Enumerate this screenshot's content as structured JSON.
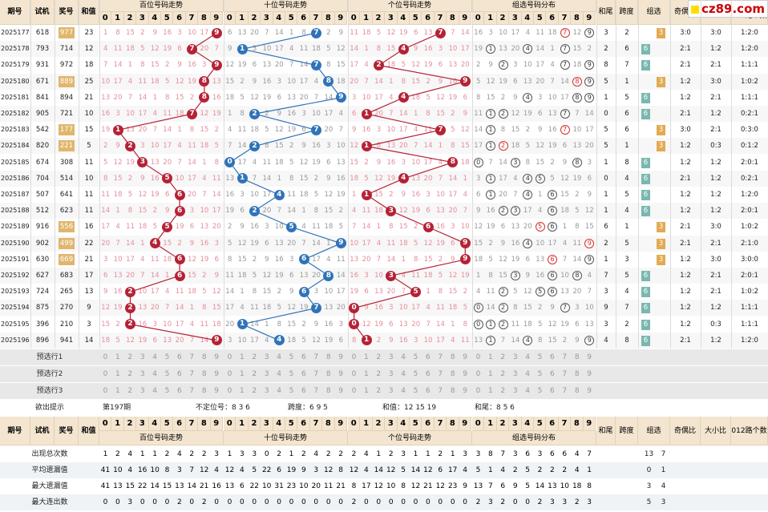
{
  "header": {
    "issue": "期号",
    "shiji": "试机",
    "jianghao": "奖号",
    "hezhi": "和值",
    "bai_title": "百位号码走势",
    "shi_title": "十位号码走势",
    "ge_title": "个位号码走势",
    "zu_title": "组选号码分布",
    "hewei": "和尾",
    "kuadu": "跨度",
    "zuxuan": "组选",
    "jiou": "奇偶比",
    "daxiao": "大小比",
    "lu": "012路个数比",
    "digits": [
      "0",
      "1",
      "2",
      "3",
      "4",
      "5",
      "6",
      "7",
      "8",
      "9"
    ]
  },
  "logo": {
    "text": "cz89.com"
  },
  "rows": [
    {
      "issue": "2025177",
      "sj": "618",
      "kj": "977",
      "kj_hl": true,
      "hz": "23",
      "b": 9,
      "s": 7,
      "g": 7,
      "zu": [
        7,
        9
      ],
      "zu_red": [
        7
      ],
      "hw": "3",
      "kd": "2",
      "zx": "3",
      "zx_type": "o",
      "jo": "3:0",
      "dx": "3:0",
      "l": "1:2:0"
    },
    {
      "issue": "2025178",
      "sj": "793",
      "kj": "714",
      "kj_hl": false,
      "hz": "12",
      "b": 7,
      "s": 1,
      "g": 4,
      "zu": [
        1,
        4,
        7
      ],
      "zu_red": [],
      "hw": "2",
      "kd": "6",
      "zx": "6",
      "zx_type": "g",
      "jo": "2:1",
      "dx": "1:2",
      "l": "1:2:0"
    },
    {
      "issue": "2025179",
      "sj": "931",
      "kj": "972",
      "kj_hl": false,
      "hz": "18",
      "b": 9,
      "s": 7,
      "g": 2,
      "zu": [
        2,
        7,
        9
      ],
      "zu_red": [],
      "hw": "8",
      "kd": "7",
      "zx": "6",
      "zx_type": "g",
      "jo": "2:1",
      "dx": "2:1",
      "l": "1:1:1"
    },
    {
      "issue": "2025180",
      "sj": "671",
      "kj": "889",
      "kj_hl": true,
      "hz": "25",
      "b": 8,
      "s": 8,
      "g": 9,
      "zu": [
        8,
        9
      ],
      "zu_red": [
        8
      ],
      "hw": "5",
      "kd": "1",
      "zx": "3",
      "zx_type": "o",
      "jo": "1:2",
      "dx": "3:0",
      "l": "1:0:2"
    },
    {
      "issue": "2025181",
      "sj": "841",
      "kj": "894",
      "kj_hl": false,
      "hz": "21",
      "b": 8,
      "s": 9,
      "g": 4,
      "zu": [
        4,
        8,
        9
      ],
      "zu_red": [],
      "hw": "1",
      "kd": "5",
      "zx": "6",
      "zx_type": "g",
      "jo": "1:2",
      "dx": "2:1",
      "l": "1:1:1"
    },
    {
      "issue": "2025182",
      "sj": "905",
      "kj": "721",
      "kj_hl": false,
      "hz": "10",
      "b": 7,
      "s": 2,
      "g": 1,
      "zu": [
        1,
        2,
        7
      ],
      "zu_red": [],
      "hw": "0",
      "kd": "6",
      "zx": "6",
      "zx_type": "g",
      "jo": "2:1",
      "dx": "1:2",
      "l": "0:2:1"
    },
    {
      "issue": "2025183",
      "sj": "542",
      "kj": "177",
      "kj_hl": true,
      "hz": "15",
      "b": 1,
      "s": 7,
      "g": 7,
      "zu": [
        1,
        7
      ],
      "zu_red": [
        7
      ],
      "hw": "5",
      "kd": "6",
      "zx": "3",
      "zx_type": "o",
      "jo": "3:0",
      "dx": "2:1",
      "l": "0:3:0"
    },
    {
      "issue": "2025184",
      "sj": "820",
      "kj": "221",
      "kj_hl": true,
      "hz": "5",
      "b": 2,
      "s": 2,
      "g": 1,
      "zu": [
        1,
        2
      ],
      "zu_red": [
        2
      ],
      "hw": "5",
      "kd": "1",
      "zx": "3",
      "zx_type": "o",
      "jo": "1:2",
      "dx": "0:3",
      "l": "0:1:2"
    },
    {
      "issue": "2025185",
      "sj": "674",
      "kj": "308",
      "kj_hl": false,
      "hz": "11",
      "b": 3,
      "s": 0,
      "g": 8,
      "zu": [
        0,
        3,
        8
      ],
      "zu_red": [],
      "hw": "1",
      "kd": "8",
      "zx": "6",
      "zx_type": "g",
      "jo": "1:2",
      "dx": "1:2",
      "l": "2:0:1"
    },
    {
      "issue": "2025186",
      "sj": "704",
      "kj": "514",
      "kj_hl": false,
      "hz": "10",
      "b": 5,
      "s": 1,
      "g": 4,
      "zu": [
        1,
        4,
        5
      ],
      "zu_red": [],
      "hw": "0",
      "kd": "4",
      "zx": "6",
      "zx_type": "g",
      "jo": "2:1",
      "dx": "1:2",
      "l": "0:2:1"
    },
    {
      "issue": "2025187",
      "sj": "507",
      "kj": "641",
      "kj_hl": false,
      "hz": "11",
      "b": 6,
      "s": 4,
      "g": 1,
      "zu": [
        1,
        4,
        6
      ],
      "zu_red": [],
      "hw": "1",
      "kd": "5",
      "zx": "6",
      "zx_type": "g",
      "jo": "1:2",
      "dx": "1:2",
      "l": "1:2:0"
    },
    {
      "issue": "2025188",
      "sj": "512",
      "kj": "623",
      "kj_hl": false,
      "hz": "11",
      "b": 6,
      "s": 2,
      "g": 3,
      "zu": [
        2,
        3,
        6
      ],
      "zu_red": [],
      "hw": "1",
      "kd": "4",
      "zx": "6",
      "zx_type": "g",
      "jo": "1:2",
      "dx": "1:2",
      "l": "2:0:1"
    },
    {
      "issue": "2025189",
      "sj": "916",
      "kj": "556",
      "kj_hl": true,
      "hz": "16",
      "b": 5,
      "s": 5,
      "g": 6,
      "zu": [
        5,
        6
      ],
      "zu_red": [
        5
      ],
      "hw": "6",
      "kd": "1",
      "zx": "3",
      "zx_type": "o",
      "jo": "2:1",
      "dx": "3:0",
      "l": "1:0:2"
    },
    {
      "issue": "2025190",
      "sj": "902",
      "kj": "499",
      "kj_hl": true,
      "hz": "22",
      "b": 4,
      "s": 9,
      "g": 9,
      "zu": [
        4,
        9
      ],
      "zu_red": [
        9
      ],
      "hw": "2",
      "kd": "5",
      "zx": "3",
      "zx_type": "o",
      "jo": "2:1",
      "dx": "2:1",
      "l": "2:1:0"
    },
    {
      "issue": "2025191",
      "sj": "630",
      "kj": "669",
      "kj_hl": true,
      "hz": "21",
      "b": 6,
      "s": 6,
      "g": 9,
      "zu": [
        6,
        9
      ],
      "zu_red": [
        6
      ],
      "hw": "1",
      "kd": "3",
      "zx": "3",
      "zx_type": "o",
      "jo": "1:2",
      "dx": "3:0",
      "l": "3:0:0"
    },
    {
      "issue": "2025192",
      "sj": "627",
      "kj": "683",
      "kj_hl": false,
      "hz": "17",
      "b": 6,
      "s": 8,
      "g": 3,
      "zu": [
        3,
        6,
        8
      ],
      "zu_red": [],
      "hw": "7",
      "kd": "5",
      "zx": "6",
      "zx_type": "g",
      "jo": "1:2",
      "dx": "2:1",
      "l": "2:0:1"
    },
    {
      "issue": "2025193",
      "sj": "724",
      "kj": "265",
      "kj_hl": false,
      "hz": "13",
      "b": 2,
      "s": 6,
      "g": 5,
      "zu": [
        2,
        5,
        6
      ],
      "zu_red": [],
      "hw": "3",
      "kd": "4",
      "zx": "6",
      "zx_type": "g",
      "jo": "1:2",
      "dx": "2:1",
      "l": "1:0:2"
    },
    {
      "issue": "2025194",
      "sj": "875",
      "kj": "270",
      "kj_hl": false,
      "hz": "9",
      "b": 2,
      "s": 7,
      "g": 0,
      "zu": [
        0,
        2,
        7
      ],
      "zu_red": [],
      "hw": "9",
      "kd": "7",
      "zx": "6",
      "zx_type": "g",
      "jo": "1:2",
      "dx": "1:2",
      "l": "1:1:1"
    },
    {
      "issue": "2025195",
      "sj": "396",
      "kj": "210",
      "kj_hl": false,
      "hz": "3",
      "b": 2,
      "s": 1,
      "g": 0,
      "zu": [
        0,
        1,
        2
      ],
      "zu_red": [],
      "hw": "3",
      "kd": "2",
      "zx": "6",
      "zx_type": "g",
      "jo": "1:2",
      "dx": "0:3",
      "l": "1:1:1"
    },
    {
      "issue": "2025196",
      "sj": "896",
      "kj": "941",
      "kj_hl": false,
      "hz": "14",
      "b": 9,
      "s": 4,
      "g": 1,
      "zu": [
        1,
        4,
        9
      ],
      "zu_red": [],
      "hw": "4",
      "kd": "8",
      "zx": "6",
      "zx_type": "g",
      "jo": "2:1",
      "dx": "1:2",
      "l": "1:2:0"
    }
  ],
  "yuxuan": [
    "预选行1",
    "预选行2",
    "预选行3"
  ],
  "hint": {
    "label": "欲出提示",
    "issue": "第197期",
    "budingwei": "不定位号：8 3 6",
    "kuadu": "跨度：6 9 5",
    "hezhi": "和值：12 15 19",
    "hewei": "和尾：8 5 6"
  },
  "stats": [
    {
      "label": "出现总次数",
      "bai": [
        "1",
        "2",
        "4",
        "1",
        "1",
        "2",
        "4",
        "2",
        "2",
        "3"
      ],
      "shi": [
        "1",
        "3",
        "3",
        "0",
        "2",
        "1",
        "2",
        "4",
        "2",
        "2"
      ],
      "ge": [
        "2",
        "4",
        "1",
        "2",
        "3",
        "1",
        "1",
        "2",
        "1",
        "3"
      ],
      "zu": [
        "3",
        "8",
        "7",
        "3",
        "6",
        "3",
        "6",
        "6",
        "4",
        "7"
      ],
      "zx": [
        "13",
        "7"
      ]
    },
    {
      "label": "平均遗漏值",
      "bai": [
        "41",
        "10",
        "4",
        "16",
        "10",
        "8",
        "3",
        "7",
        "12",
        "4"
      ],
      "shi": [
        "12",
        "4",
        "5",
        "22",
        "6",
        "19",
        "9",
        "3",
        "12",
        "8"
      ],
      "ge": [
        "12",
        "4",
        "14",
        "12",
        "5",
        "14",
        "12",
        "6",
        "17",
        "4"
      ],
      "zu": [
        "5",
        "1",
        "4",
        "2",
        "5",
        "2",
        "2",
        "2",
        "4",
        "1"
      ],
      "zx": [
        "0",
        "1"
      ]
    },
    {
      "label": "最大遗漏值",
      "bai": [
        "41",
        "13",
        "15",
        "22",
        "14",
        "15",
        "13",
        "14",
        "21",
        "16"
      ],
      "shi": [
        "13",
        "6",
        "22",
        "10",
        "31",
        "23",
        "10",
        "20",
        "11",
        "21"
      ],
      "ge": [
        "8",
        "17",
        "12",
        "10",
        "8",
        "12",
        "21",
        "12",
        "23",
        "9"
      ],
      "zu": [
        "13",
        "7",
        "6",
        "9",
        "5",
        "14",
        "13",
        "10",
        "18",
        "8"
      ],
      "zx": [
        "3",
        "4"
      ]
    },
    {
      "label": "最大连出数",
      "bai": [
        "0",
        "0",
        "3",
        "0",
        "0",
        "0",
        "2",
        "0",
        "2",
        "0"
      ],
      "shi": [
        "0",
        "0",
        "0",
        "0",
        "0",
        "0",
        "0",
        "0",
        "0",
        "0"
      ],
      "ge": [
        "2",
        "0",
        "0",
        "0",
        "0",
        "0",
        "0",
        "0",
        "0",
        "0"
      ],
      "zu": [
        "2",
        "3",
        "2",
        "0",
        "0",
        "2",
        "3",
        "3",
        "2",
        "3"
      ],
      "zx": [
        "5",
        "3"
      ]
    }
  ],
  "chart_data": {
    "type": "line",
    "title": "",
    "x": [
      "2025177",
      "2025178",
      "2025179",
      "2025180",
      "2025181",
      "2025182",
      "2025183",
      "2025184",
      "2025185",
      "2025186",
      "2025187",
      "2025188",
      "2025189",
      "2025190",
      "2025191",
      "2025192",
      "2025193",
      "2025194",
      "2025195",
      "2025196"
    ],
    "series": [
      {
        "name": "百位号码走势",
        "values": [
          9,
          7,
          9,
          8,
          8,
          7,
          1,
          2,
          3,
          5,
          6,
          6,
          5,
          4,
          6,
          6,
          2,
          2,
          2,
          9
        ]
      },
      {
        "name": "十位号码走势",
        "values": [
          7,
          1,
          7,
          8,
          9,
          2,
          7,
          2,
          0,
          1,
          4,
          2,
          5,
          9,
          6,
          8,
          6,
          7,
          1,
          4
        ]
      },
      {
        "name": "个位号码走势",
        "values": [
          7,
          4,
          2,
          9,
          4,
          1,
          7,
          1,
          8,
          4,
          1,
          3,
          6,
          9,
          9,
          3,
          5,
          0,
          0,
          1
        ]
      }
    ],
    "ylim": [
      0,
      9
    ],
    "colors": {
      "bai": "#b52235",
      "shi": "#2f73b8",
      "ge": "#b52235"
    }
  }
}
